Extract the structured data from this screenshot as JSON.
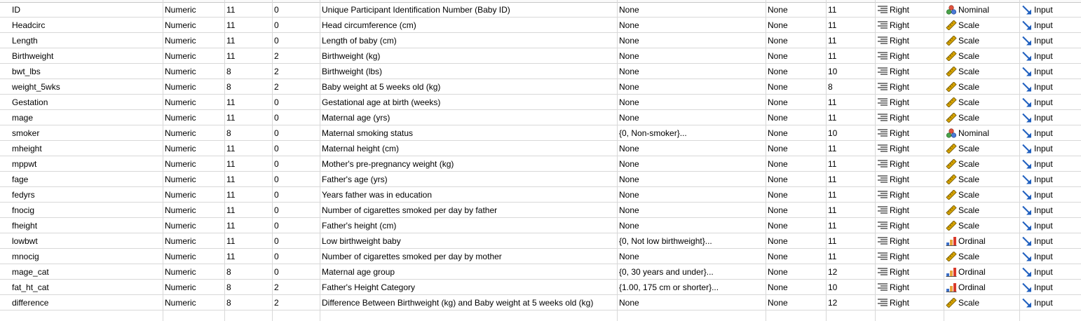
{
  "icons": {
    "align": "align-right-lines-icon",
    "nominal": "nominal-circles-icon",
    "scale": "scale-ruler-icon",
    "ordinal": "ordinal-bars-icon",
    "input": "input-arrow-icon"
  },
  "colors": {
    "grid_line": "#d8d8d8",
    "input_arrow": "#1f5fbf",
    "ruler": "#d6a300",
    "ordinal_red": "#d93a2b",
    "ordinal_blue": "#3b6fc8"
  },
  "rows": [
    {
      "name": "ID",
      "type": "Numeric",
      "width": "11",
      "decimals": "0",
      "label": "Unique Participant Identification Number (Baby ID)",
      "values": "None",
      "missing": "None",
      "columns": "11",
      "align": "Right",
      "measure": "Nominal",
      "role": "Input"
    },
    {
      "name": "Headcirc",
      "type": "Numeric",
      "width": "11",
      "decimals": "0",
      "label": "Head circumference (cm)",
      "values": "None",
      "missing": "None",
      "columns": "11",
      "align": "Right",
      "measure": "Scale",
      "role": "Input"
    },
    {
      "name": "Length",
      "type": "Numeric",
      "width": "11",
      "decimals": "0",
      "label": "Length of baby (cm)",
      "values": "None",
      "missing": "None",
      "columns": "11",
      "align": "Right",
      "measure": "Scale",
      "role": "Input"
    },
    {
      "name": "Birthweight",
      "type": "Numeric",
      "width": "11",
      "decimals": "2",
      "label": "Birthweight (kg)",
      "values": "None",
      "missing": "None",
      "columns": "11",
      "align": "Right",
      "measure": "Scale",
      "role": "Input"
    },
    {
      "name": "bwt_lbs",
      "type": "Numeric",
      "width": "8",
      "decimals": "2",
      "label": "Birthweight (lbs)",
      "values": "None",
      "missing": "None",
      "columns": "10",
      "align": "Right",
      "measure": "Scale",
      "role": "Input"
    },
    {
      "name": "weight_5wks",
      "type": "Numeric",
      "width": "8",
      "decimals": "2",
      "label": "Baby weight at 5 weeks old (kg)",
      "values": "None",
      "missing": "None",
      "columns": "8",
      "align": "Right",
      "measure": "Scale",
      "role": "Input"
    },
    {
      "name": "Gestation",
      "type": "Numeric",
      "width": "11",
      "decimals": "0",
      "label": "Gestational age at birth (weeks)",
      "values": "None",
      "missing": "None",
      "columns": "11",
      "align": "Right",
      "measure": "Scale",
      "role": "Input"
    },
    {
      "name": "mage",
      "type": "Numeric",
      "width": "11",
      "decimals": "0",
      "label": "Maternal age (yrs)",
      "values": "None",
      "missing": "None",
      "columns": "11",
      "align": "Right",
      "measure": "Scale",
      "role": "Input"
    },
    {
      "name": "smoker",
      "type": "Numeric",
      "width": "8",
      "decimals": "0",
      "label": "Maternal smoking status",
      "values": "{0, Non-smoker}...",
      "missing": "None",
      "columns": "10",
      "align": "Right",
      "measure": "Nominal",
      "role": "Input"
    },
    {
      "name": "mheight",
      "type": "Numeric",
      "width": "11",
      "decimals": "0",
      "label": "Maternal height (cm)",
      "values": "None",
      "missing": "None",
      "columns": "11",
      "align": "Right",
      "measure": "Scale",
      "role": "Input"
    },
    {
      "name": "mppwt",
      "type": "Numeric",
      "width": "11",
      "decimals": "0",
      "label": "Mother's pre-pregnancy weight (kg)",
      "values": "None",
      "missing": "None",
      "columns": "11",
      "align": "Right",
      "measure": "Scale",
      "role": "Input"
    },
    {
      "name": "fage",
      "type": "Numeric",
      "width": "11",
      "decimals": "0",
      "label": "Father's age (yrs)",
      "values": "None",
      "missing": "None",
      "columns": "11",
      "align": "Right",
      "measure": "Scale",
      "role": "Input"
    },
    {
      "name": "fedyrs",
      "type": "Numeric",
      "width": "11",
      "decimals": "0",
      "label": "Years father was in education",
      "values": "None",
      "missing": "None",
      "columns": "11",
      "align": "Right",
      "measure": "Scale",
      "role": "Input"
    },
    {
      "name": "fnocig",
      "type": "Numeric",
      "width": "11",
      "decimals": "0",
      "label": "Number of cigarettes smoked per day by father",
      "values": "None",
      "missing": "None",
      "columns": "11",
      "align": "Right",
      "measure": "Scale",
      "role": "Input"
    },
    {
      "name": "fheight",
      "type": "Numeric",
      "width": "11",
      "decimals": "0",
      "label": "Father's height (cm)",
      "values": "None",
      "missing": "None",
      "columns": "11",
      "align": "Right",
      "measure": "Scale",
      "role": "Input"
    },
    {
      "name": "lowbwt",
      "type": "Numeric",
      "width": "11",
      "decimals": "0",
      "label": "Low birthweight baby",
      "values": "{0, Not low birthweight}...",
      "missing": "None",
      "columns": "11",
      "align": "Right",
      "measure": "Ordinal",
      "role": "Input"
    },
    {
      "name": "mnocig",
      "type": "Numeric",
      "width": "11",
      "decimals": "0",
      "label": "Number of cigarettes smoked per day by mother",
      "values": "None",
      "missing": "None",
      "columns": "11",
      "align": "Right",
      "measure": "Scale",
      "role": "Input"
    },
    {
      "name": "mage_cat",
      "type": "Numeric",
      "width": "8",
      "decimals": "0",
      "label": "Maternal age group",
      "values": "{0, 30 years and under}...",
      "missing": "None",
      "columns": "12",
      "align": "Right",
      "measure": "Ordinal",
      "role": "Input"
    },
    {
      "name": "fat_ht_cat",
      "type": "Numeric",
      "width": "8",
      "decimals": "2",
      "label": "Father's Height Category",
      "values": "{1.00, 175 cm or shorter}...",
      "missing": "None",
      "columns": "10",
      "align": "Right",
      "measure": "Ordinal",
      "role": "Input"
    },
    {
      "name": "difference",
      "type": "Numeric",
      "width": "8",
      "decimals": "2",
      "label": "Difference Between Birthweight (kg) and Baby weight at 5 weeks old (kg)",
      "values": "None",
      "missing": "None",
      "columns": "12",
      "align": "Right",
      "measure": "Scale",
      "role": "Input"
    }
  ]
}
